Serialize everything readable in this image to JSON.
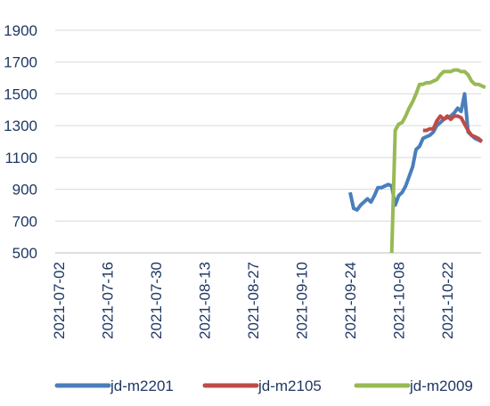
{
  "chart_data": {
    "type": "line",
    "title": "",
    "xlabel": "",
    "ylabel": "",
    "ylim": [
      500,
      1900
    ],
    "yticks": [
      500,
      700,
      900,
      1100,
      1300,
      1500,
      1700,
      1900
    ],
    "xticks": [
      "2021-07-02",
      "2021-07-16",
      "2021-07-30",
      "2021-08-13",
      "2021-08-27",
      "2021-09-10",
      "2021-09-24",
      "2021-10-08",
      "2021-10-22"
    ],
    "grid": "horizontal",
    "legend_position": "bottom",
    "series": [
      {
        "name": "jd-m2201",
        "color": "#4a7ebb",
        "points": [
          [
            "2021-09-24",
            880
          ],
          [
            "2021-09-25",
            780
          ],
          [
            "2021-09-26",
            770
          ],
          [
            "2021-09-27",
            800
          ],
          [
            "2021-09-28",
            820
          ],
          [
            "2021-09-29",
            840
          ],
          [
            "2021-09-30",
            820
          ],
          [
            "2021-10-01",
            860
          ],
          [
            "2021-10-02",
            910
          ],
          [
            "2021-10-03",
            910
          ],
          [
            "2021-10-04",
            920
          ],
          [
            "2021-10-05",
            930
          ],
          [
            "2021-10-06",
            920
          ],
          [
            "2021-10-07",
            800
          ],
          [
            "2021-10-08",
            860
          ],
          [
            "2021-10-09",
            880
          ],
          [
            "2021-10-10",
            920
          ],
          [
            "2021-10-11",
            980
          ],
          [
            "2021-10-12",
            1040
          ],
          [
            "2021-10-13",
            1150
          ],
          [
            "2021-10-14",
            1170
          ],
          [
            "2021-10-15",
            1220
          ],
          [
            "2021-10-16",
            1230
          ],
          [
            "2021-10-17",
            1240
          ],
          [
            "2021-10-18",
            1260
          ],
          [
            "2021-10-19",
            1300
          ],
          [
            "2021-10-20",
            1320
          ],
          [
            "2021-10-21",
            1340
          ],
          [
            "2021-10-22",
            1350
          ],
          [
            "2021-10-23",
            1360
          ],
          [
            "2021-10-24",
            1380
          ],
          [
            "2021-10-25",
            1410
          ],
          [
            "2021-10-26",
            1390
          ],
          [
            "2021-10-27",
            1500
          ],
          [
            "2021-10-28",
            1260
          ],
          [
            "2021-10-29",
            1240
          ],
          [
            "2021-10-30",
            1220
          ],
          [
            "2021-10-31",
            1210
          ],
          [
            "2021-11-01",
            1200
          ]
        ]
      },
      {
        "name": "jd-m2105",
        "color": "#be4b48",
        "points": [
          [
            "2021-10-15",
            1270
          ],
          [
            "2021-10-16",
            1270
          ],
          [
            "2021-10-17",
            1280
          ],
          [
            "2021-10-18",
            1280
          ],
          [
            "2021-10-19",
            1330
          ],
          [
            "2021-10-20",
            1360
          ],
          [
            "2021-10-21",
            1340
          ],
          [
            "2021-10-22",
            1360
          ],
          [
            "2021-10-23",
            1340
          ],
          [
            "2021-10-24",
            1360
          ],
          [
            "2021-10-25",
            1360
          ],
          [
            "2021-10-26",
            1350
          ],
          [
            "2021-10-27",
            1310
          ],
          [
            "2021-10-28",
            1270
          ],
          [
            "2021-10-29",
            1240
          ],
          [
            "2021-10-30",
            1230
          ],
          [
            "2021-10-31",
            1220
          ],
          [
            "2021-11-01",
            1200
          ]
        ]
      },
      {
        "name": "jd-m2009",
        "color": "#98b954",
        "points": [
          [
            "2021-10-06",
            500
          ],
          [
            "2021-10-07",
            1270
          ],
          [
            "2021-10-08",
            1310
          ],
          [
            "2021-10-09",
            1320
          ],
          [
            "2021-10-10",
            1360
          ],
          [
            "2021-10-11",
            1410
          ],
          [
            "2021-10-12",
            1450
          ],
          [
            "2021-10-13",
            1500
          ],
          [
            "2021-10-14",
            1560
          ],
          [
            "2021-10-15",
            1560
          ],
          [
            "2021-10-16",
            1570
          ],
          [
            "2021-10-17",
            1570
          ],
          [
            "2021-10-18",
            1580
          ],
          [
            "2021-10-19",
            1590
          ],
          [
            "2021-10-20",
            1620
          ],
          [
            "2021-10-21",
            1640
          ],
          [
            "2021-10-22",
            1640
          ],
          [
            "2021-10-23",
            1640
          ],
          [
            "2021-10-24",
            1650
          ],
          [
            "2021-10-25",
            1650
          ],
          [
            "2021-10-26",
            1640
          ],
          [
            "2021-10-27",
            1640
          ],
          [
            "2021-10-28",
            1620
          ],
          [
            "2021-10-29",
            1580
          ],
          [
            "2021-10-30",
            1560
          ],
          [
            "2021-10-31",
            1560
          ],
          [
            "2021-11-01",
            1550
          ],
          [
            "2021-11-02",
            1540
          ]
        ]
      }
    ]
  }
}
